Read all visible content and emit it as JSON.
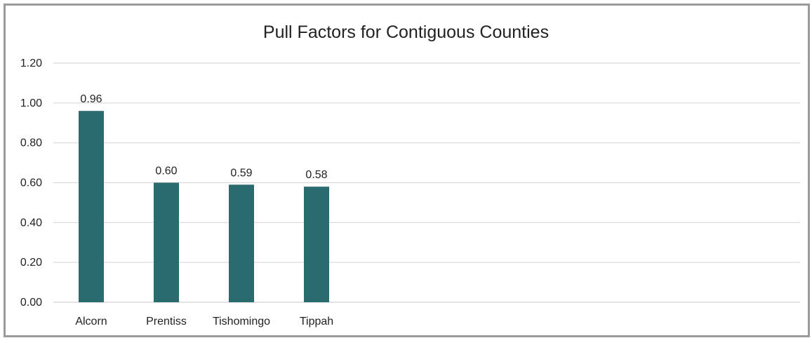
{
  "chart_data": {
    "type": "bar",
    "title": "Pull Factors for Contiguous Counties",
    "xlabel": "",
    "ylabel": "",
    "categories": [
      "Alcorn",
      "Prentiss",
      "Tishomingo",
      "Tippah"
    ],
    "values": [
      0.96,
      0.6,
      0.59,
      0.58
    ],
    "data_labels": [
      "0.96",
      "0.60",
      "0.59",
      "0.58"
    ],
    "ylim": [
      0,
      1.2
    ],
    "y_ticks": [
      "0.00",
      "0.20",
      "0.40",
      "0.60",
      "0.80",
      "1.00",
      "1.20"
    ],
    "grid": true,
    "legend": "none",
    "bar_color": "#2a6b6f",
    "grid_color": "#d9d9d9"
  }
}
